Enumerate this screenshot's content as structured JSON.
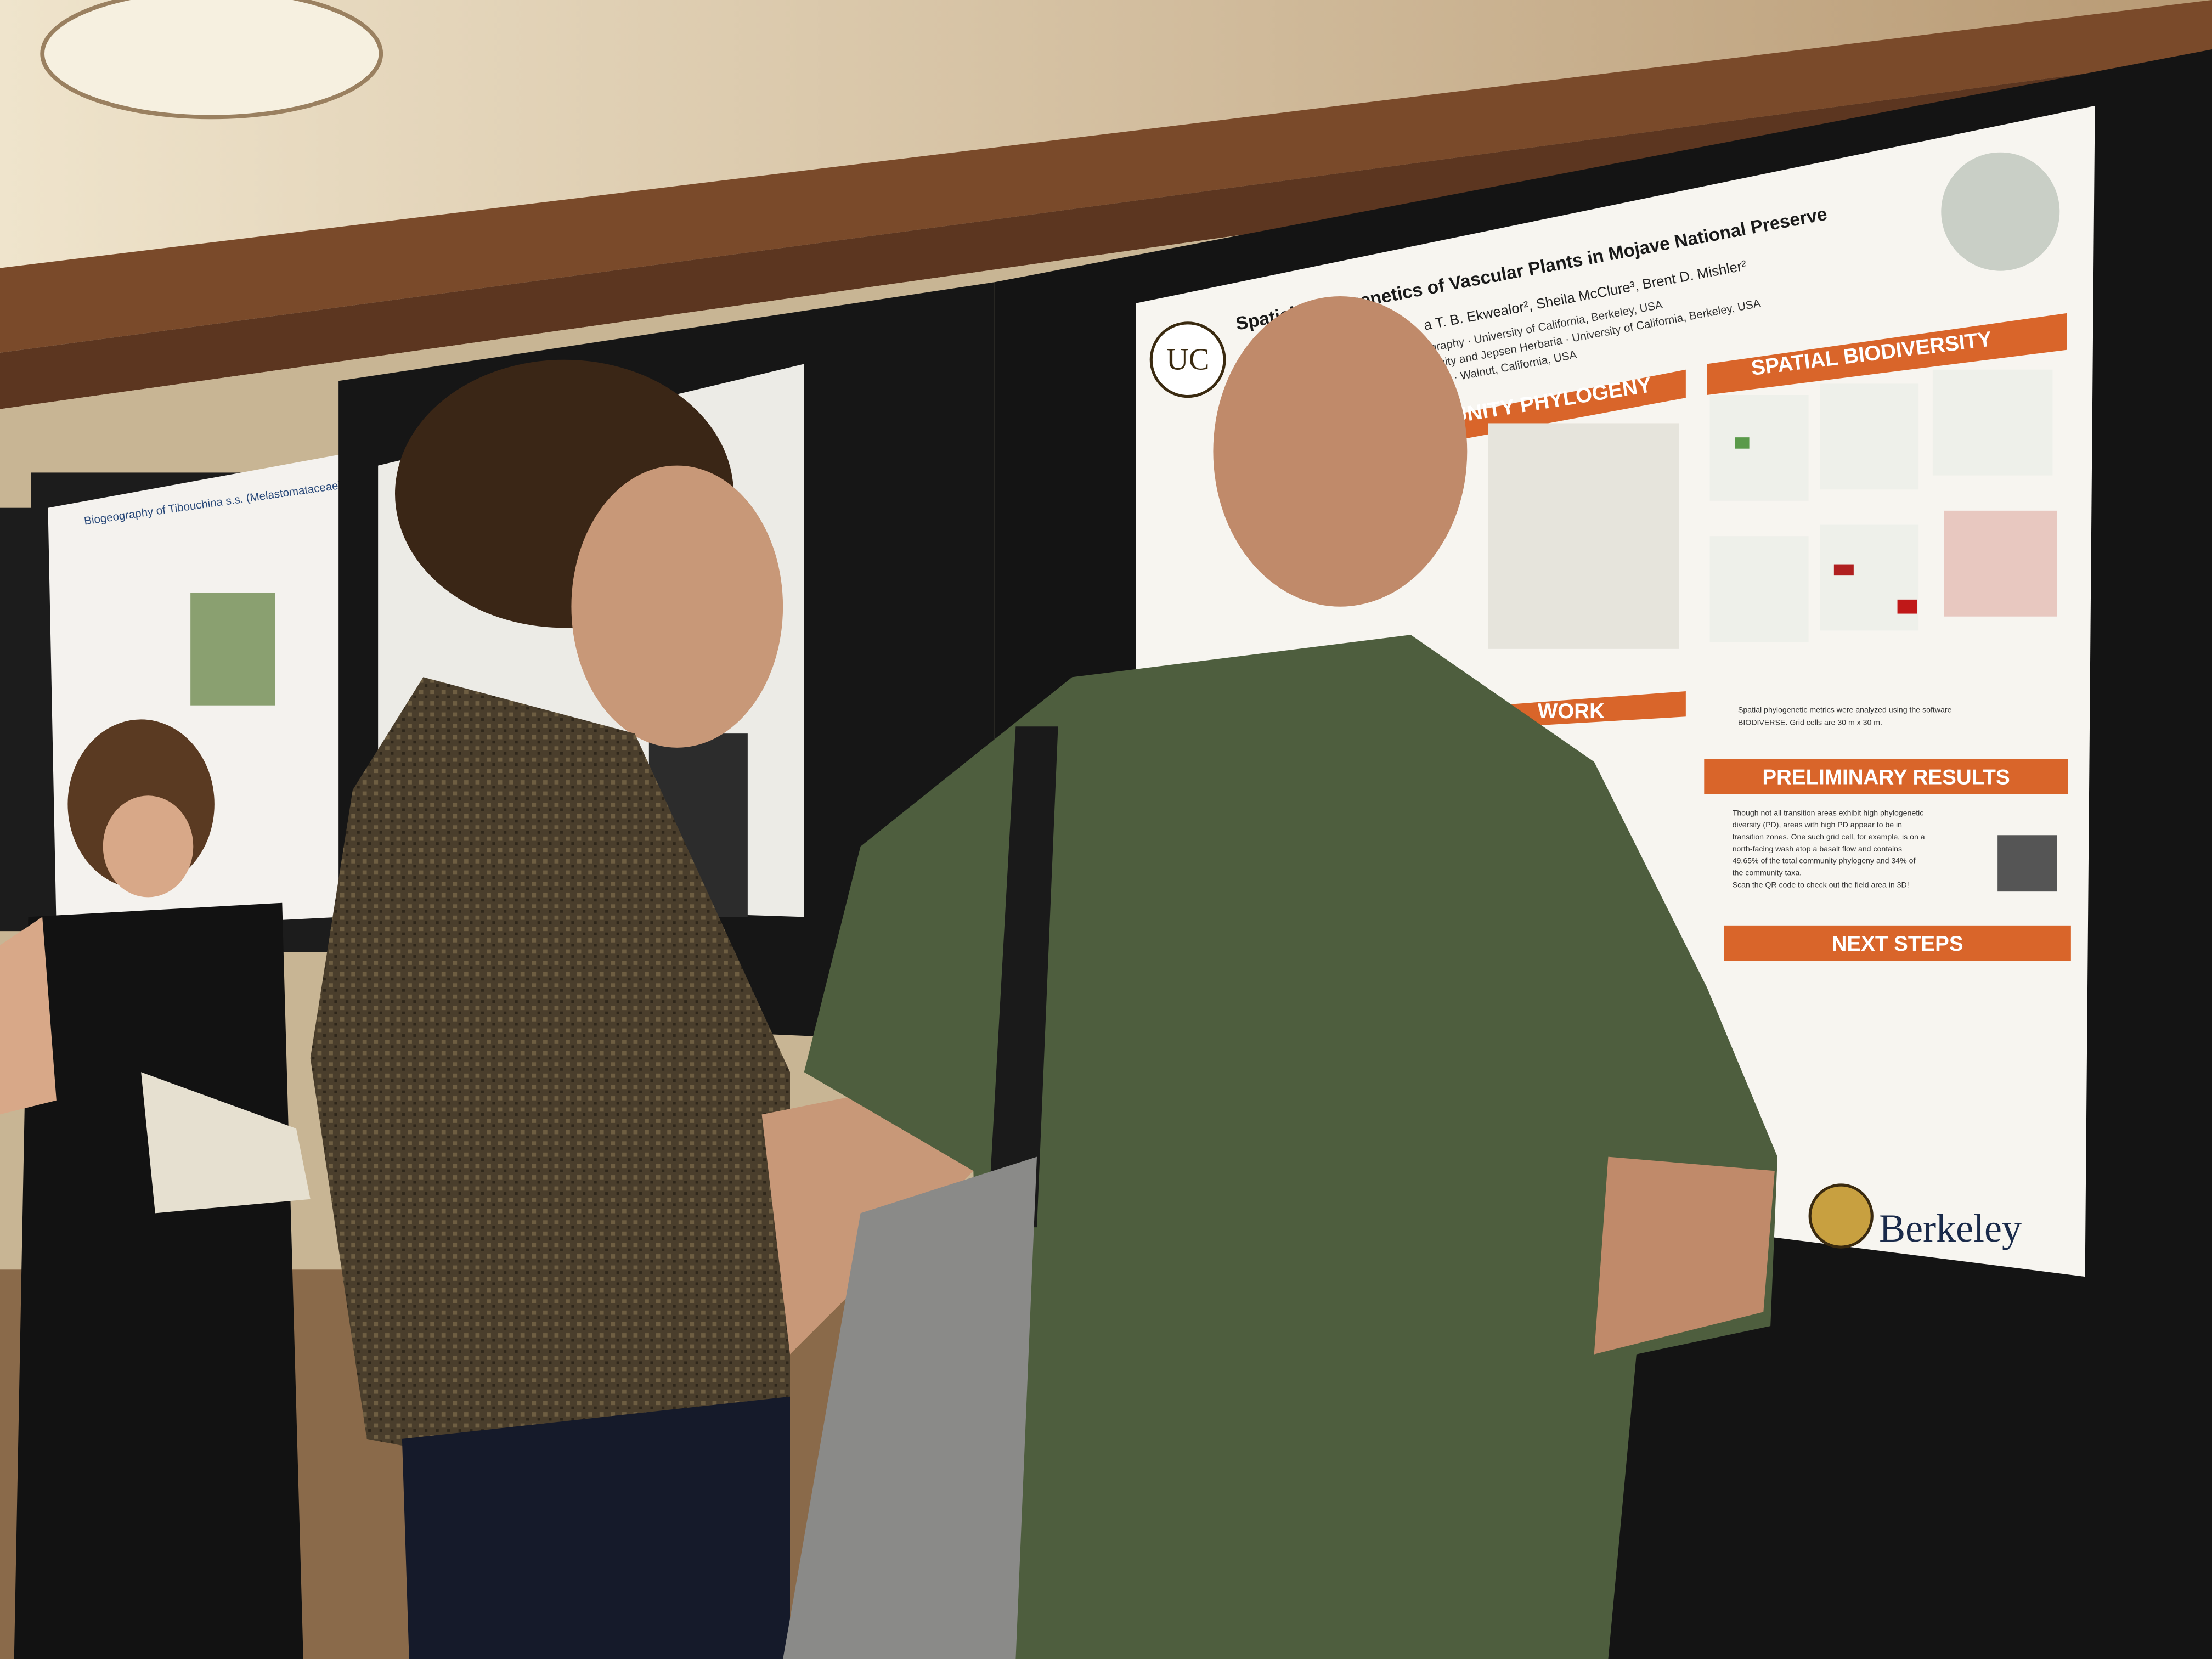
{
  "poster": {
    "title": "Spatial Phylogenetics of Vascular Plants in Mojave National Preserve",
    "authors": "a T. B. Ekwealor², Sheila McClure³, Brent D. Mishler²",
    "affiliations": [
      "ography · University of California, Berkeley, USA",
      "versity and Jepsen Herbaria · University of California, Berkeley, USA",
      "Earth · Walnut, California, USA"
    ],
    "uc_logo": "UC",
    "sections": {
      "phylogeny": "UNITY PHYLOGENY",
      "work": "WORK",
      "spatial": "SPATIAL BIODIVERSITY",
      "results": "PRELIMINARY RESULTS",
      "next": "NEXT STEPS"
    },
    "spatial_note": [
      "Spatial phylogenetic metrics were analyzed using the software",
      "BIODIVERSE. Grid cells are 30 m x 30 m."
    ],
    "results_text": [
      "Though not all transition areas exhibit high phylogenetic",
      "diversity (PD), areas with high PD appear to be in",
      "transition zones. One such grid cell, for example, is on a",
      "north-facing wash atop a basalt flow and contains",
      "49.65% of the total community phylogeny and 34% of",
      "the community taxa.",
      "Scan the QR code to check out the field area in 3D!"
    ],
    "berkeley_logo": "Berkeley"
  },
  "left_poster": {
    "title": "Biogeography of Tibouchina s.s. (Melastomataceae) in South America"
  }
}
